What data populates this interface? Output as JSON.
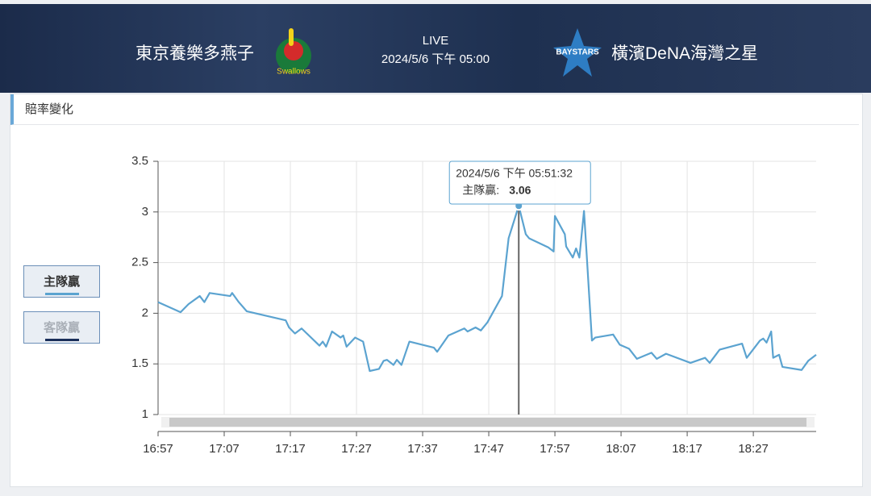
{
  "header": {
    "home_team": "東京養樂多燕子",
    "status": "LIVE",
    "datetime": "2024/5/6 下午 05:00",
    "away_team": "橫濱DeNA海灣之星"
  },
  "section_title": "賠率變化",
  "chart_data": {
    "type": "line",
    "legend": [
      {
        "name": "主隊贏",
        "color": "#5ba3d0",
        "active": true
      },
      {
        "name": "客隊贏",
        "color": "#1a2f5a",
        "active": false
      }
    ],
    "x": [
      "16:57:00",
      "17:00:24",
      "17:01:36",
      "17:03:18",
      "17:04:00",
      "17:04:48",
      "17:07:54",
      "17:08:12",
      "17:09:12",
      "17:10:24",
      "17:16:18",
      "17:16:48",
      "17:17:42",
      "17:18:42",
      "17:21:24",
      "17:21:54",
      "17:22:24",
      "17:23:18",
      "17:24:36",
      "17:25:00",
      "17:25:30",
      "17:26:48",
      "17:28:00",
      "17:29:00",
      "17:30:24",
      "17:31:06",
      "17:31:36",
      "17:32:36",
      "17:33:06",
      "17:33:48",
      "17:35:00",
      "17:38:42",
      "17:39:12",
      "17:40:54",
      "17:43:18",
      "17:43:48",
      "17:45:00",
      "17:45:48",
      "17:46:48",
      "17:49:00",
      "17:50:00",
      "17:51:32",
      "17:52:36",
      "17:53:06",
      "17:56:00",
      "17:56:48",
      "17:57:00",
      "17:58:30",
      "17:58:42",
      "17:59:42",
      "18:00:12",
      "18:00:42",
      "18:01:24",
      "18:02:36",
      "18:03:06",
      "18:05:48",
      "18:06:48",
      "18:08:12",
      "18:09:24",
      "18:11:36",
      "18:12:24",
      "18:13:48",
      "18:17:30",
      "18:19:42",
      "18:20:24",
      "18:21:54",
      "18:25:18",
      "18:26:00",
      "18:28:00",
      "18:28:30",
      "18:29:00",
      "18:29:42",
      "18:30:00",
      "18:30:54",
      "18:31:24",
      "18:34:18",
      "18:35:18",
      "18:36:30"
    ],
    "series": [
      {
        "name": "主隊贏",
        "color": "#5ba3d0",
        "values": [
          2.11,
          2.01,
          2.09,
          2.17,
          2.11,
          2.2,
          2.17,
          2.2,
          2.11,
          2.02,
          1.93,
          1.86,
          1.8,
          1.85,
          1.68,
          1.72,
          1.67,
          1.82,
          1.76,
          1.78,
          1.67,
          1.76,
          1.72,
          1.43,
          1.45,
          1.53,
          1.54,
          1.49,
          1.54,
          1.49,
          1.72,
          1.66,
          1.62,
          1.78,
          1.85,
          1.82,
          1.86,
          1.83,
          1.91,
          2.17,
          2.74,
          3.06,
          2.78,
          2.74,
          2.65,
          2.61,
          2.96,
          2.78,
          2.66,
          2.55,
          2.64,
          2.55,
          3.01,
          1.73,
          1.76,
          1.79,
          1.69,
          1.65,
          1.55,
          1.61,
          1.55,
          1.6,
          1.51,
          1.56,
          1.51,
          1.64,
          1.7,
          1.56,
          1.73,
          1.75,
          1.71,
          1.82,
          1.56,
          1.59,
          1.47,
          1.44,
          1.53,
          1.59
        ]
      }
    ],
    "xlim": [
      "16:57",
      "18:36:30"
    ],
    "xticks": [
      "16:57",
      "17:07",
      "17:17",
      "17:27",
      "17:37",
      "17:47",
      "17:57",
      "18:07",
      "18:17",
      "18:27"
    ],
    "ylim": [
      1,
      3.5
    ],
    "yticks": [
      1,
      1.5,
      2,
      2.5,
      3,
      3.5
    ],
    "grid": true,
    "tooltip": {
      "title": "2024/5/6 下午 05:51:32",
      "label": "主隊贏:",
      "point": 41
    }
  }
}
